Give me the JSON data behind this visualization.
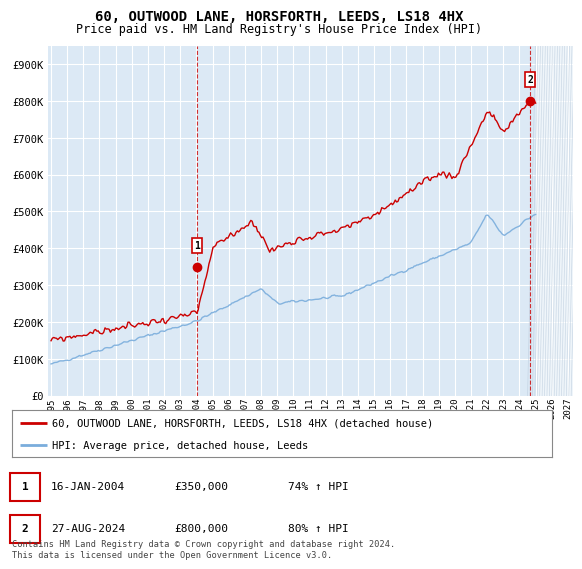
{
  "title": "60, OUTWOOD LANE, HORSFORTH, LEEDS, LS18 4HX",
  "subtitle": "Price paid vs. HM Land Registry's House Price Index (HPI)",
  "ylim": [
    0,
    950000
  ],
  "yticks": [
    0,
    100000,
    200000,
    300000,
    400000,
    500000,
    600000,
    700000,
    800000,
    900000
  ],
  "ytick_labels": [
    "£0",
    "£100K",
    "£200K",
    "£300K",
    "£400K",
    "£500K",
    "£600K",
    "£700K",
    "£800K",
    "£900K"
  ],
  "background_color": "#dce9f5",
  "red_color": "#cc0000",
  "blue_color": "#7aaddc",
  "legend_label_red": "60, OUTWOOD LANE, HORSFORTH, LEEDS, LS18 4HX (detached house)",
  "legend_label_blue": "HPI: Average price, detached house, Leeds",
  "transaction1_date": "16-JAN-2004",
  "transaction1_price": "£350,000",
  "transaction1_hpi": "74% ↑ HPI",
  "transaction2_date": "27-AUG-2024",
  "transaction2_price": "£800,000",
  "transaction2_hpi": "80% ↑ HPI",
  "footer": "Contains HM Land Registry data © Crown copyright and database right 2024.\nThis data is licensed under the Open Government Licence v3.0.",
  "marker1_x": 2004.04,
  "marker1_y": 350000,
  "marker2_x": 2024.65,
  "marker2_y": 800000,
  "vline1_x": 2004.04,
  "vline2_x": 2024.65,
  "hatch_start": 2025.0,
  "xlim": [
    1994.8,
    2027.3
  ]
}
